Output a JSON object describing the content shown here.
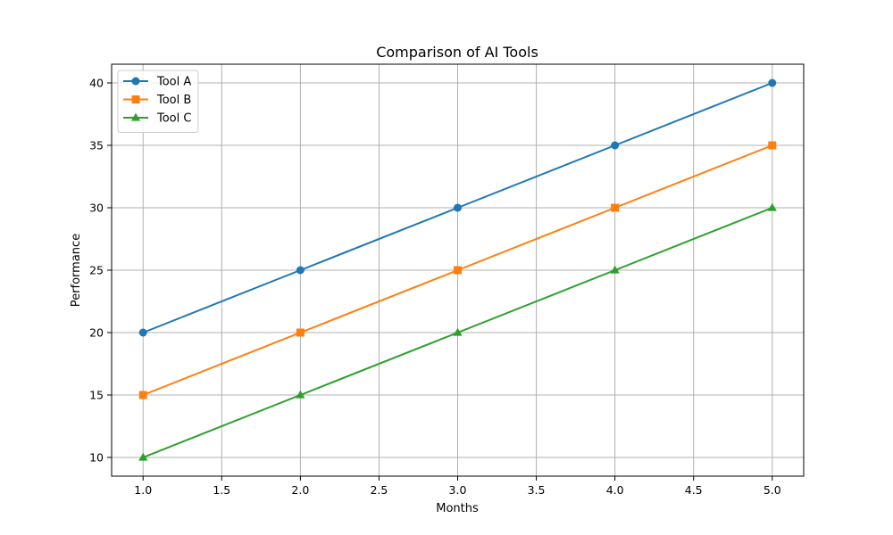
{
  "chart_data": {
    "type": "line",
    "title": "Comparison of AI Tools",
    "xlabel": "Months",
    "ylabel": "Performance",
    "x": [
      1,
      2,
      3,
      4,
      5
    ],
    "xlim": [
      0.8,
      5.2
    ],
    "ylim": [
      8.5,
      41.5
    ],
    "xticks": [
      1.0,
      1.5,
      2.0,
      2.5,
      3.0,
      3.5,
      4.0,
      4.5,
      5.0
    ],
    "xtick_labels": [
      "1.0",
      "1.5",
      "2.0",
      "2.5",
      "3.0",
      "3.5",
      "4.0",
      "4.5",
      "5.0"
    ],
    "yticks": [
      10,
      15,
      20,
      25,
      30,
      35,
      40
    ],
    "ytick_labels": [
      "10",
      "15",
      "20",
      "25",
      "30",
      "35",
      "40"
    ],
    "grid": true,
    "legend_position": "top-left",
    "series": [
      {
        "name": "Tool A",
        "values": [
          20,
          25,
          30,
          35,
          40
        ],
        "color": "#1f77b4",
        "marker": "circle"
      },
      {
        "name": "Tool B",
        "values": [
          15,
          20,
          25,
          30,
          35
        ],
        "color": "#ff7f0e",
        "marker": "square"
      },
      {
        "name": "Tool C",
        "values": [
          10,
          15,
          20,
          25,
          30
        ],
        "color": "#2ca02c",
        "marker": "triangle"
      }
    ]
  }
}
